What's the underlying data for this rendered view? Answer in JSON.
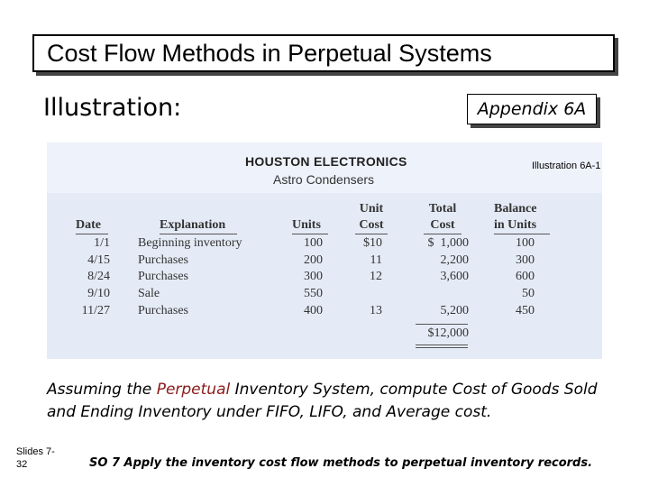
{
  "slide": {
    "title": "Cost Flow Methods in Perpetual Systems",
    "illustration_label": "Illustration:",
    "appendix_label": "Appendix 6A"
  },
  "table": {
    "company": "HOUSTON ELECTRONICS",
    "product": "Astro Condensers",
    "illustration_ref": "Illustration 6A-1",
    "headers": {
      "date": "Date",
      "explanation": "Explanation",
      "units": "Units",
      "unit_cost_1": "Unit",
      "unit_cost_2": "Cost",
      "total_cost_1": "Total",
      "total_cost_2": "Cost",
      "balance_1": "Balance",
      "balance_2": "in Units"
    },
    "rows": [
      {
        "date": "1/1",
        "explanation": "Beginning inventory",
        "units": "100",
        "unit_cost": "$10",
        "total_cost": "$  1,000",
        "balance": "100"
      },
      {
        "date": "4/15",
        "explanation": "Purchases",
        "units": "200",
        "unit_cost": "11",
        "total_cost": "2,200",
        "balance": "300"
      },
      {
        "date": "8/24",
        "explanation": "Purchases",
        "units": "300",
        "unit_cost": "12",
        "total_cost": "3,600",
        "balance": "600"
      },
      {
        "date": "9/10",
        "explanation": "Sale",
        "units": "550",
        "unit_cost": "",
        "total_cost": "",
        "balance": "50"
      },
      {
        "date": "11/27",
        "explanation": "Purchases",
        "units": "400",
        "unit_cost": "13",
        "total_cost": "5,200",
        "balance": "450"
      }
    ],
    "total": "$12,000"
  },
  "question": {
    "part1": "Assuming the ",
    "highlight": "Perpetual",
    "part2": " Inventory System, compute Cost of Goods Sold and Ending Inventory under FIFO, LIFO, and Average cost."
  },
  "footer": {
    "slides_line1": "Slides 7-",
    "slides_line2": "32",
    "so": "SO 7  Apply the inventory cost flow methods to perpetual inventory records."
  },
  "colors": {
    "panel": "#e4ebf6",
    "highlight": "#8b1a1a"
  }
}
